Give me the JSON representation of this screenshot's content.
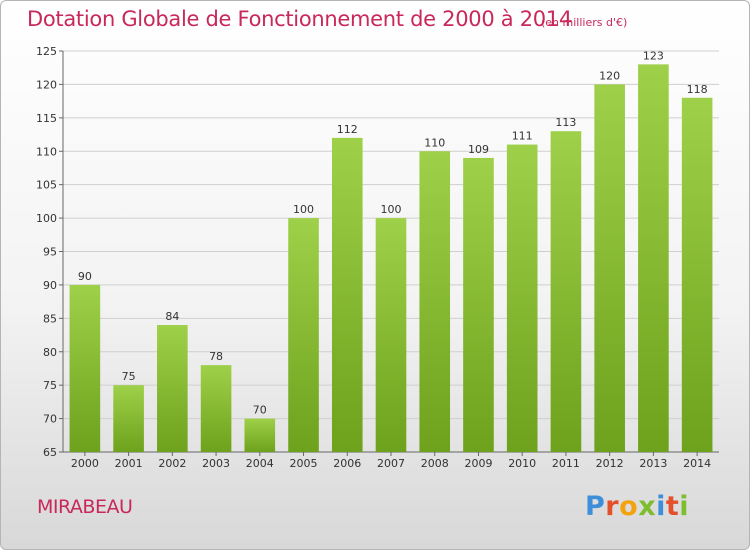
{
  "title": "Dotation Globale de Fonctionnement de 2000 à 2014",
  "units_note": "(en milliers d'€)",
  "commune": "MIRABEAU",
  "logo": {
    "letters": [
      "P",
      "r",
      "o",
      "x",
      "i",
      "t",
      "i"
    ],
    "colors": [
      "#3c8fd8",
      "#e3502b",
      "#f2a30e",
      "#7dbd2e",
      "#3c8fd8",
      "#e3502b",
      "#7dbd2e"
    ]
  },
  "colors": {
    "bar_light": "#9fd04a",
    "bar_dark": "#6ea21c",
    "text_accent": "#c8285a",
    "grid": "#cfcfcf"
  },
  "chart_data": {
    "type": "bar",
    "categories": [
      "2000",
      "2001",
      "2002",
      "2003",
      "2004",
      "2005",
      "2006",
      "2007",
      "2008",
      "2009",
      "2010",
      "2011",
      "2012",
      "2013",
      "2014"
    ],
    "values": [
      90,
      75,
      84,
      78,
      70,
      100,
      112,
      100,
      110,
      109,
      111,
      113,
      120,
      123,
      118
    ],
    "ylim": [
      65,
      125
    ],
    "yticks": [
      65,
      70,
      75,
      80,
      85,
      90,
      95,
      100,
      105,
      110,
      115,
      120,
      125
    ],
    "grid": true,
    "data_labels": true
  }
}
